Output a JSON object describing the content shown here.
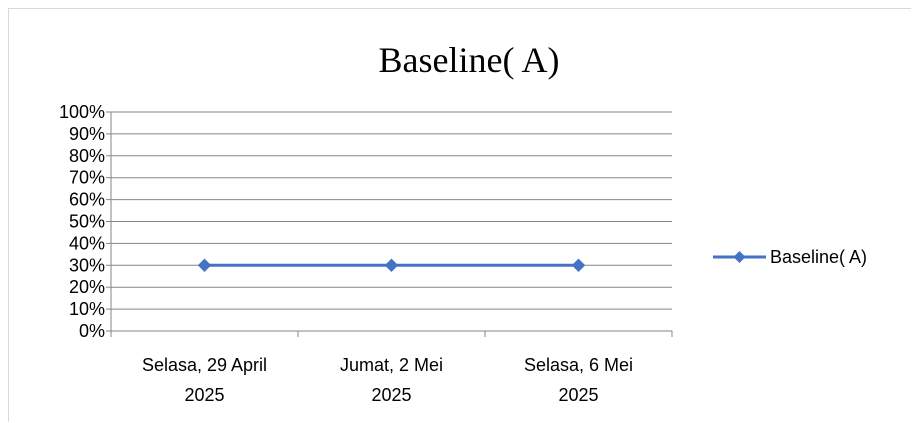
{
  "chart_data": {
    "type": "line",
    "title": "Baseline( A)",
    "xlabel": "",
    "ylabel": "",
    "categories": [
      [
        "Selasa, 29 April",
        "2025"
      ],
      [
        "Jumat, 2 Mei",
        "2025"
      ],
      [
        "Selasa, 6 Mei",
        "2025"
      ]
    ],
    "ylim": [
      0,
      100
    ],
    "y_ticks": [
      "0%",
      "10%",
      "20%",
      "30%",
      "40%",
      "50%",
      "60%",
      "70%",
      "80%",
      "90%",
      "100%"
    ],
    "y_tick_values": [
      0,
      10,
      20,
      30,
      40,
      50,
      60,
      70,
      80,
      90,
      100
    ],
    "series": [
      {
        "name": "Baseline( A)",
        "values": [
          30,
          30,
          30
        ],
        "color": "#4472c4",
        "marker": "diamond"
      }
    ],
    "grid": true,
    "legend_position": "right"
  }
}
